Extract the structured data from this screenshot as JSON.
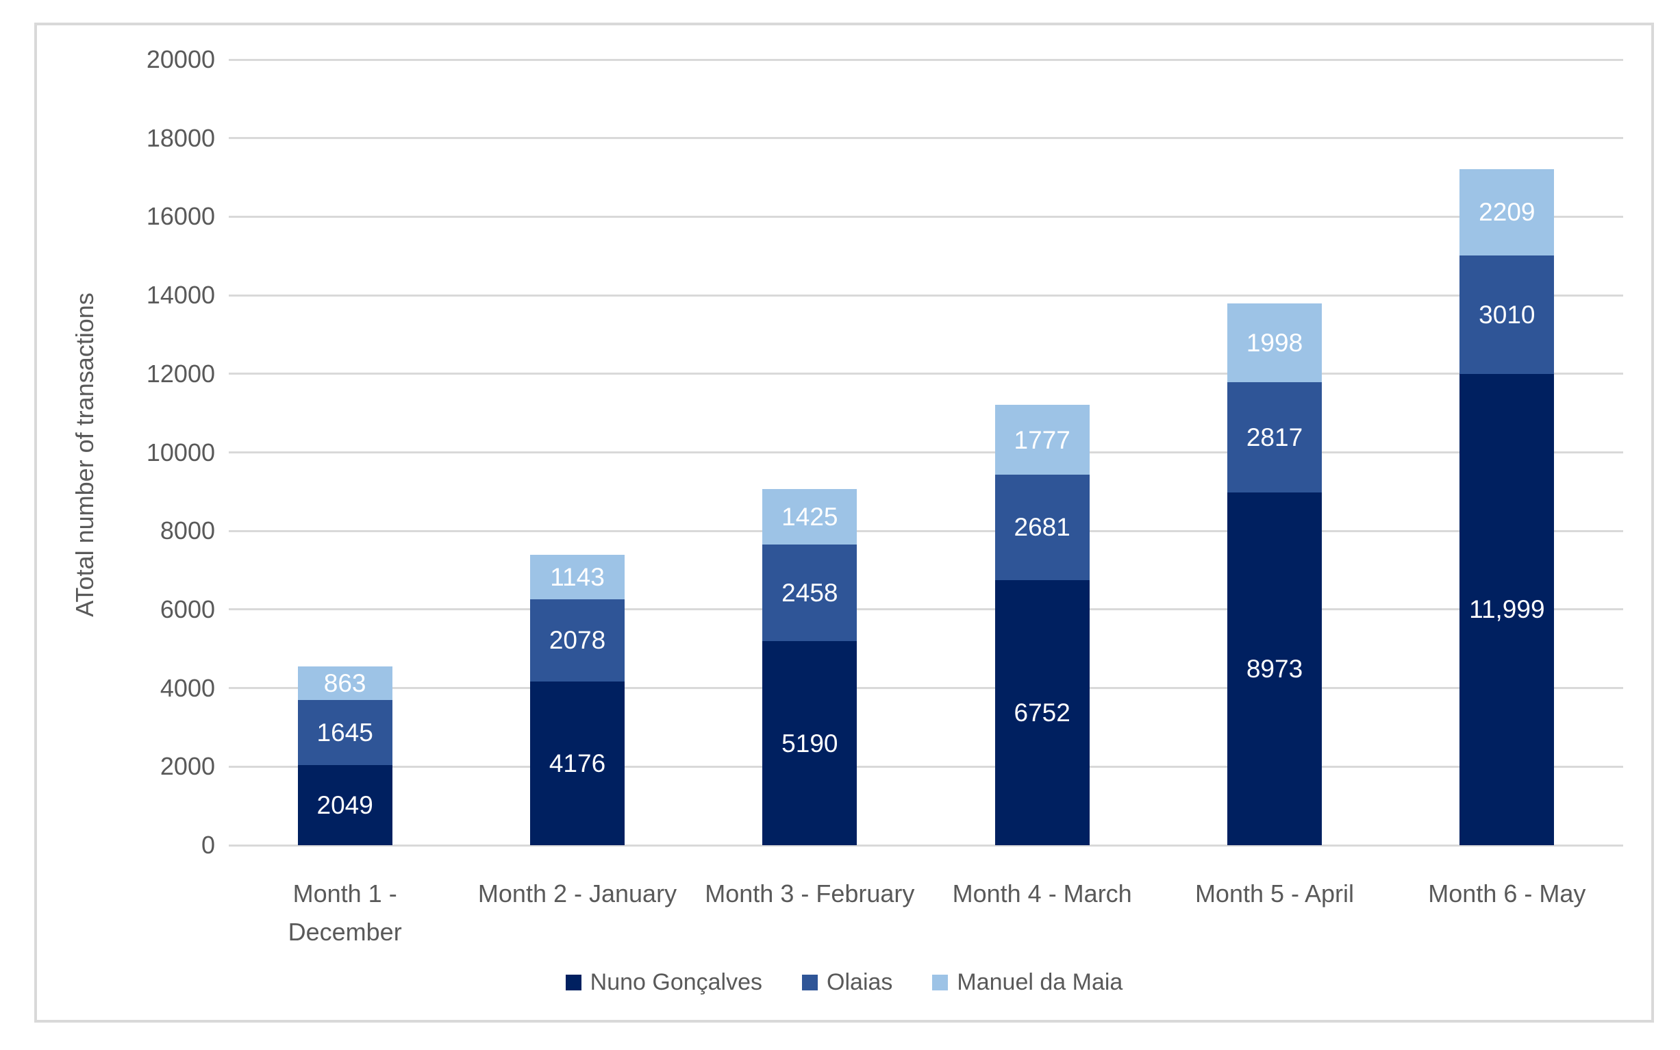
{
  "chart_data": {
    "type": "bar",
    "stacked": true,
    "title": "",
    "xlabel": "",
    "ylabel": "ATotal number of transactions",
    "ylim": [
      0,
      20000
    ],
    "ytick_step": 2000,
    "yticks": [
      "0",
      "2000",
      "4000",
      "6000",
      "8000",
      "10000",
      "12000",
      "14000",
      "16000",
      "18000",
      "20000"
    ],
    "grid": true,
    "gridline_color": "#d9d9d9",
    "text_color": "#595959",
    "legend_position": "bottom",
    "categories": [
      "Month 1 -\nDecember",
      "Month 2 - January",
      "Month 3 - February",
      "Month 4 - March",
      "Month 5 - April",
      "Month 6 - May"
    ],
    "series": [
      {
        "name": "Nuno Gonçalves",
        "color": "#002060",
        "values": [
          2049,
          4176,
          5190,
          6752,
          8973,
          11999
        ],
        "labels": [
          "2049",
          "4176",
          "5190",
          "6752",
          "8973",
          "11,999"
        ]
      },
      {
        "name": "Olaias",
        "color": "#2F5597",
        "values": [
          1645,
          2078,
          2458,
          2681,
          2817,
          3010
        ],
        "labels": [
          "1645",
          "2078",
          "2458",
          "2681",
          "2817",
          "3010"
        ]
      },
      {
        "name": "Manuel da Maia",
        "color": "#9DC3E6",
        "values": [
          863,
          1143,
          1425,
          1777,
          1998,
          2209
        ],
        "labels": [
          "863",
          "1143",
          "1425",
          "1777",
          "1998",
          "2209"
        ]
      }
    ]
  }
}
